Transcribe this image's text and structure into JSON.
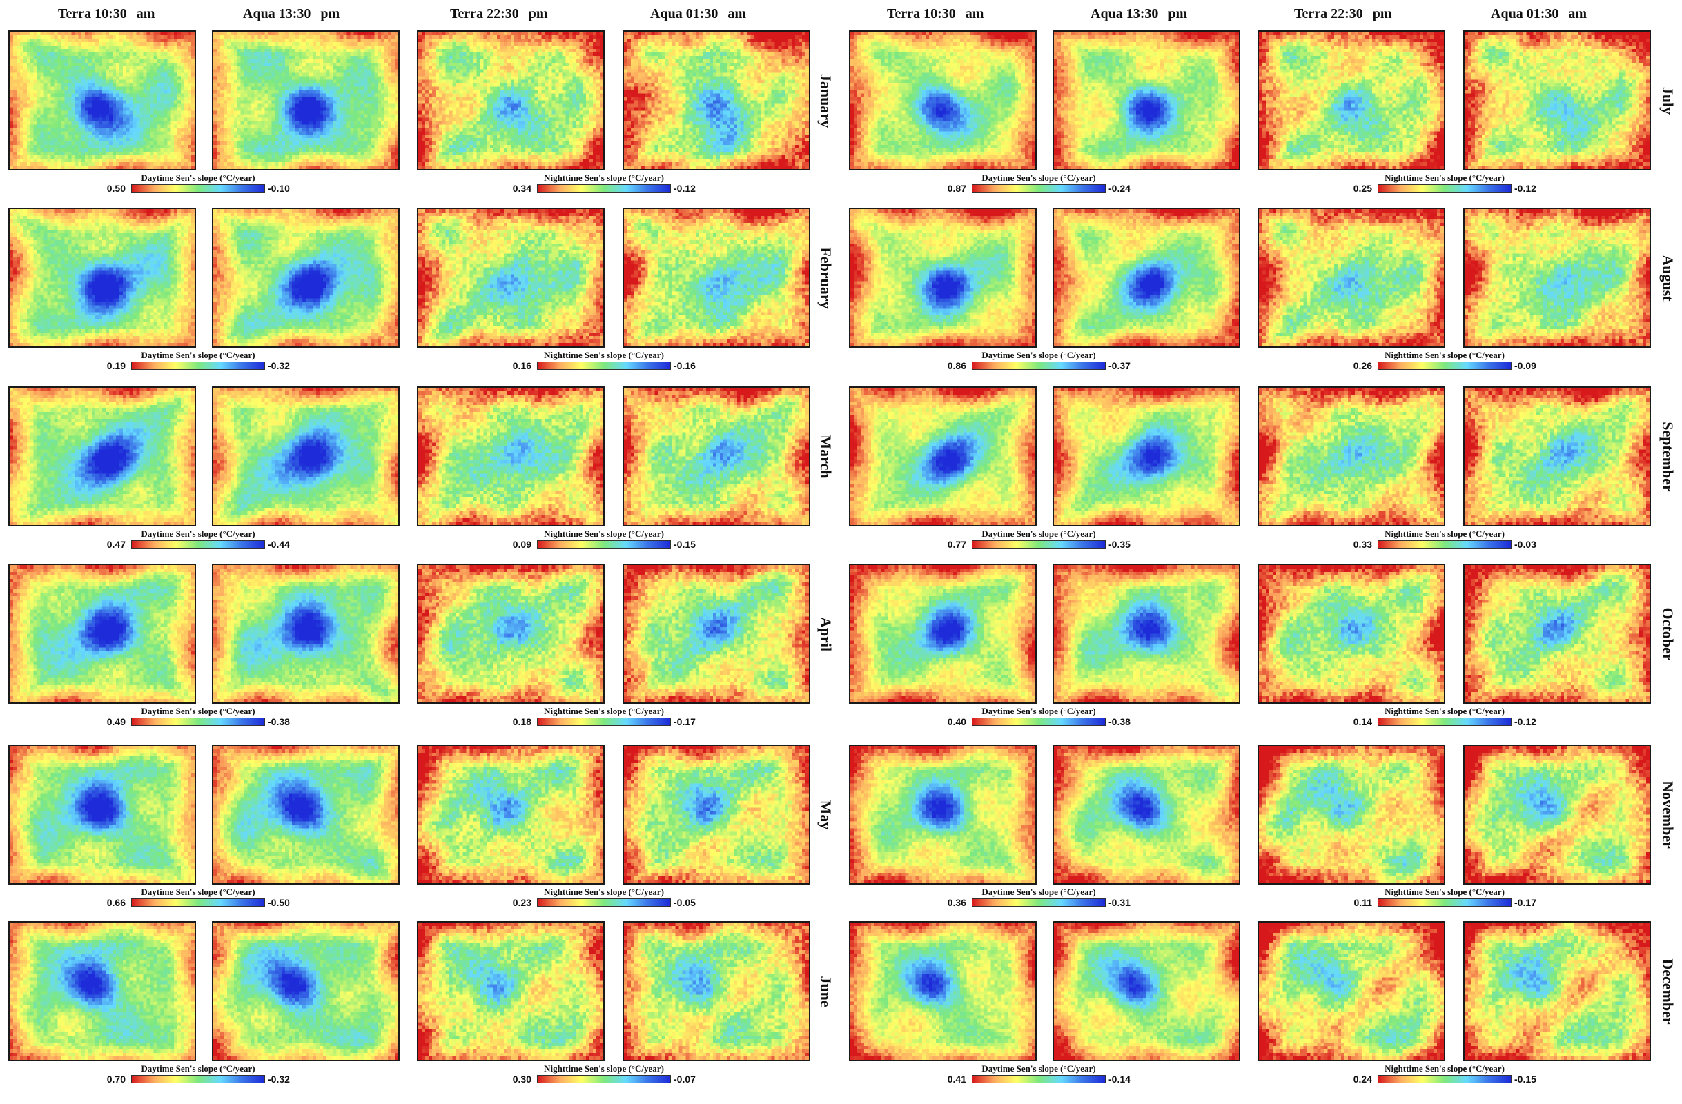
{
  "figure": {
    "colormap": [
      "#d7191c",
      "#fdae61",
      "#ffff66",
      "#7ee87e",
      "#66d9ff",
      "#3b75e8",
      "#1d2bd8"
    ],
    "headers": {
      "left": [
        {
          "label": "Terra 10:30",
          "suffix": "am"
        },
        {
          "label": "Aqua 13:30",
          "suffix": "pm"
        },
        {
          "label": "Terra 22:30",
          "suffix": "pm"
        },
        {
          "label": "Aqua 01:30",
          "suffix": "am"
        }
      ],
      "right": [
        {
          "label": "Terra 10:30",
          "suffix": "am"
        },
        {
          "label": "Aqua 13:30",
          "suffix": "pm"
        },
        {
          "label": "Terra 22:30",
          "suffix": "pm"
        },
        {
          "label": "Aqua 01:30",
          "suffix": "am"
        }
      ]
    },
    "legend_titles": {
      "day": "Daytime Sen's slope (°C/year)",
      "night": "Nighttime Sen's slope (°C/year)"
    },
    "months": {
      "left": [
        "January",
        "February",
        "March",
        "April",
        "May",
        "June"
      ],
      "right": [
        "July",
        "August",
        "September",
        "October",
        "November",
        "December"
      ]
    },
    "legends": {
      "left": {
        "day": [
          {
            "min": "0.50",
            "max": "-0.10"
          },
          {
            "min": "0.19",
            "max": "-0.32"
          },
          {
            "min": "0.47",
            "max": "-0.44"
          },
          {
            "min": "0.49",
            "max": "-0.38"
          },
          {
            "min": "0.66",
            "max": "-0.50"
          },
          {
            "min": "0.70",
            "max": "-0.32"
          }
        ],
        "night": [
          {
            "min": "0.34",
            "max": "-0.12"
          },
          {
            "min": "0.16",
            "max": "-0.16"
          },
          {
            "min": "0.09",
            "max": "-0.15"
          },
          {
            "min": "0.18",
            "max": "-0.17"
          },
          {
            "min": "0.23",
            "max": "-0.05"
          },
          {
            "min": "0.30",
            "max": "-0.07"
          }
        ]
      },
      "right": {
        "day": [
          {
            "min": "0.87",
            "max": "-0.24"
          },
          {
            "min": "0.86",
            "max": "-0.37"
          },
          {
            "min": "0.77",
            "max": "-0.35"
          },
          {
            "min": "0.40",
            "max": "-0.38"
          },
          {
            "min": "0.36",
            "max": "-0.31"
          },
          {
            "min": "0.41",
            "max": "-0.14"
          }
        ],
        "night": [
          {
            "min": "0.25",
            "max": "-0.12"
          },
          {
            "min": "0.26",
            "max": "-0.09"
          },
          {
            "min": "0.33",
            "max": "-0.03"
          },
          {
            "min": "0.14",
            "max": "-0.12"
          },
          {
            "min": "0.11",
            "max": "-0.17"
          },
          {
            "min": "0.24",
            "max": "-0.15"
          }
        ]
      }
    }
  }
}
